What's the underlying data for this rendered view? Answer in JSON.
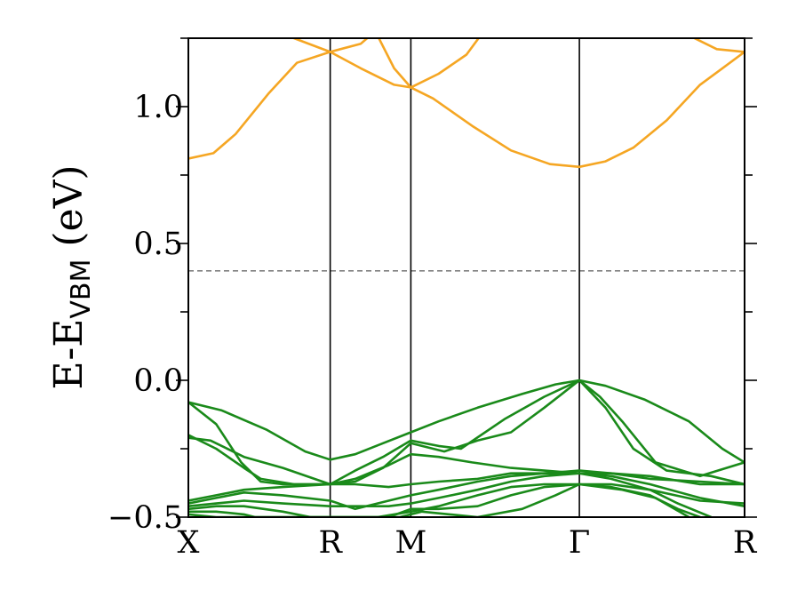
{
  "chart_data": {
    "type": "line",
    "title": "",
    "ylabel": {
      "main": "E-E",
      "sub": "VBM",
      "unit": " (eV)"
    },
    "ylim": [
      -0.5,
      1.25
    ],
    "yticks": [
      -0.5,
      0.0,
      0.5,
      1.0
    ],
    "ytick_labels": [
      "−0.5",
      "0.0",
      "0.5",
      "1.0"
    ],
    "xlim": [
      0,
      1
    ],
    "high_symmetry_points": [
      {
        "label": "X",
        "x": 0.0
      },
      {
        "label": "R",
        "x": 0.255
      },
      {
        "label": "M",
        "x": 0.4
      },
      {
        "label": "Γ",
        "x": 0.703
      },
      {
        "label": "R",
        "x": 1.0
      }
    ],
    "reference_line": {
      "y": 0.4,
      "style": "dashed",
      "color": "#808080"
    },
    "colors": {
      "conduction": "#F5A623",
      "valence": "#1A8A1A",
      "frame": "#000000"
    },
    "series": [
      {
        "band": "conduction",
        "points": [
          [
            0.0,
            0.81
          ],
          [
            0.045,
            0.83
          ],
          [
            0.085,
            0.9
          ],
          [
            0.145,
            1.05
          ],
          [
            0.195,
            1.16
          ],
          [
            0.255,
            1.2
          ],
          [
            0.31,
            1.23
          ],
          [
            0.35,
            1.3
          ]
        ]
      },
      {
        "band": "conduction",
        "points": [
          [
            0.14,
            1.3
          ],
          [
            0.19,
            1.25
          ],
          [
            0.255,
            1.2
          ],
          [
            0.31,
            1.14
          ],
          [
            0.37,
            1.08
          ],
          [
            0.4,
            1.07
          ],
          [
            0.44,
            1.03
          ],
          [
            0.51,
            0.93
          ],
          [
            0.58,
            0.84
          ],
          [
            0.65,
            0.79
          ],
          [
            0.703,
            0.78
          ],
          [
            0.75,
            0.8
          ],
          [
            0.8,
            0.85
          ],
          [
            0.86,
            0.95
          ],
          [
            0.92,
            1.08
          ],
          [
            0.96,
            1.14
          ],
          [
            1.0,
            1.2
          ]
        ]
      },
      {
        "band": "conduction",
        "points": [
          [
            0.33,
            1.3
          ],
          [
            0.37,
            1.14
          ],
          [
            0.4,
            1.07
          ],
          [
            0.45,
            1.12
          ],
          [
            0.5,
            1.19
          ],
          [
            0.54,
            1.3
          ]
        ]
      },
      {
        "band": "conduction",
        "points": [
          [
            0.85,
            1.3
          ],
          [
            0.9,
            1.26
          ],
          [
            0.95,
            1.21
          ],
          [
            1.0,
            1.2
          ]
        ]
      },
      {
        "band": "valence",
        "points": [
          [
            0.0,
            -0.08
          ],
          [
            0.06,
            -0.11
          ],
          [
            0.14,
            -0.18
          ],
          [
            0.21,
            -0.26
          ],
          [
            0.255,
            -0.29
          ],
          [
            0.3,
            -0.27
          ],
          [
            0.35,
            -0.23
          ],
          [
            0.4,
            -0.19
          ],
          [
            0.45,
            -0.15
          ],
          [
            0.52,
            -0.1
          ],
          [
            0.6,
            -0.05
          ],
          [
            0.66,
            -0.015
          ],
          [
            0.703,
            0.0
          ],
          [
            0.75,
            -0.02
          ],
          [
            0.82,
            -0.07
          ],
          [
            0.9,
            -0.15
          ],
          [
            0.96,
            -0.25
          ],
          [
            1.0,
            -0.3
          ]
        ]
      },
      {
        "band": "valence",
        "points": [
          [
            0.0,
            -0.08
          ],
          [
            0.05,
            -0.16
          ],
          [
            0.095,
            -0.3
          ],
          [
            0.13,
            -0.37
          ],
          [
            0.17,
            -0.38
          ],
          [
            0.255,
            -0.38
          ],
          [
            0.3,
            -0.33
          ],
          [
            0.35,
            -0.28
          ],
          [
            0.4,
            -0.22
          ],
          [
            0.45,
            -0.24
          ],
          [
            0.49,
            -0.25
          ],
          [
            0.57,
            -0.14
          ],
          [
            0.64,
            -0.06
          ],
          [
            0.703,
            0.0
          ],
          [
            0.75,
            -0.1
          ],
          [
            0.8,
            -0.25
          ],
          [
            0.86,
            -0.33
          ],
          [
            0.94,
            -0.35
          ],
          [
            1.0,
            -0.38
          ]
        ]
      },
      {
        "band": "valence",
        "points": [
          [
            0.0,
            -0.21
          ],
          [
            0.04,
            -0.22
          ],
          [
            0.1,
            -0.28
          ],
          [
            0.17,
            -0.32
          ],
          [
            0.255,
            -0.38
          ],
          [
            0.3,
            -0.37
          ],
          [
            0.35,
            -0.32
          ],
          [
            0.4,
            -0.23
          ],
          [
            0.46,
            -0.26
          ],
          [
            0.52,
            -0.22
          ],
          [
            0.58,
            -0.19
          ],
          [
            0.64,
            -0.1
          ],
          [
            0.703,
            0.0
          ],
          [
            0.74,
            -0.06
          ],
          [
            0.78,
            -0.15
          ],
          [
            0.84,
            -0.3
          ],
          [
            0.92,
            -0.35
          ],
          [
            1.0,
            -0.3
          ]
        ]
      },
      {
        "band": "valence",
        "points": [
          [
            0.0,
            -0.2
          ],
          [
            0.05,
            -0.25
          ],
          [
            0.1,
            -0.32
          ],
          [
            0.13,
            -0.36
          ],
          [
            0.19,
            -0.38
          ],
          [
            0.255,
            -0.38
          ],
          [
            0.3,
            -0.36
          ],
          [
            0.36,
            -0.31
          ],
          [
            0.4,
            -0.27
          ],
          [
            0.45,
            -0.28
          ],
          [
            0.51,
            -0.3
          ],
          [
            0.58,
            -0.32
          ],
          [
            0.64,
            -0.33
          ],
          [
            0.703,
            -0.34
          ],
          [
            0.76,
            -0.34
          ],
          [
            0.83,
            -0.35
          ],
          [
            0.92,
            -0.38
          ],
          [
            1.0,
            -0.38
          ]
        ]
      },
      {
        "band": "valence",
        "points": [
          [
            0.0,
            -0.44
          ],
          [
            0.05,
            -0.42
          ],
          [
            0.1,
            -0.4
          ],
          [
            0.17,
            -0.39
          ],
          [
            0.255,
            -0.38
          ],
          [
            0.3,
            -0.38
          ],
          [
            0.36,
            -0.39
          ],
          [
            0.4,
            -0.38
          ],
          [
            0.45,
            -0.37
          ],
          [
            0.52,
            -0.36
          ],
          [
            0.58,
            -0.34
          ],
          [
            0.64,
            -0.34
          ],
          [
            0.703,
            -0.33
          ],
          [
            0.76,
            -0.34
          ],
          [
            0.83,
            -0.36
          ],
          [
            0.92,
            -0.37
          ],
          [
            1.0,
            -0.38
          ]
        ]
      },
      {
        "band": "valence",
        "points": [
          [
            0.0,
            -0.45
          ],
          [
            0.05,
            -0.43
          ],
          [
            0.1,
            -0.41
          ],
          [
            0.17,
            -0.42
          ],
          [
            0.255,
            -0.44
          ],
          [
            0.3,
            -0.47
          ],
          [
            0.36,
            -0.44
          ],
          [
            0.4,
            -0.42
          ],
          [
            0.45,
            -0.4
          ],
          [
            0.52,
            -0.37
          ],
          [
            0.58,
            -0.35
          ],
          [
            0.64,
            -0.34
          ],
          [
            0.703,
            -0.34
          ],
          [
            0.76,
            -0.35
          ],
          [
            0.83,
            -0.38
          ],
          [
            0.92,
            -0.43
          ],
          [
            1.0,
            -0.46
          ]
        ]
      },
      {
        "band": "valence",
        "points": [
          [
            0.0,
            -0.46
          ],
          [
            0.05,
            -0.45
          ],
          [
            0.1,
            -0.44
          ],
          [
            0.17,
            -0.45
          ],
          [
            0.255,
            -0.46
          ],
          [
            0.3,
            -0.46
          ],
          [
            0.36,
            -0.46
          ],
          [
            0.4,
            -0.45
          ],
          [
            0.45,
            -0.43
          ],
          [
            0.52,
            -0.4
          ],
          [
            0.58,
            -0.37
          ],
          [
            0.64,
            -0.35
          ],
          [
            0.703,
            -0.34
          ],
          [
            0.76,
            -0.36
          ],
          [
            0.83,
            -0.4
          ],
          [
            0.92,
            -0.44
          ],
          [
            1.0,
            -0.45
          ]
        ]
      },
      {
        "band": "valence",
        "points": [
          [
            0.0,
            -0.47
          ],
          [
            0.05,
            -0.46
          ],
          [
            0.1,
            -0.46
          ],
          [
            0.17,
            -0.48
          ],
          [
            0.22,
            -0.5
          ],
          [
            0.34,
            -0.5
          ],
          [
            0.4,
            -0.48
          ],
          [
            0.45,
            -0.46
          ],
          [
            0.52,
            -0.42
          ],
          [
            0.58,
            -0.39
          ],
          [
            0.64,
            -0.38
          ],
          [
            0.703,
            -0.38
          ],
          [
            0.76,
            -0.39
          ],
          [
            0.83,
            -0.42
          ],
          [
            0.88,
            -0.47
          ],
          [
            0.92,
            -0.5
          ]
        ]
      },
      {
        "band": "valence",
        "points": [
          [
            0.0,
            -0.48
          ],
          [
            0.05,
            -0.48
          ],
          [
            0.1,
            -0.49
          ],
          [
            0.12,
            -0.5
          ],
          [
            0.36,
            -0.5
          ],
          [
            0.4,
            -0.47
          ],
          [
            0.45,
            -0.47
          ],
          [
            0.52,
            -0.46
          ],
          [
            0.58,
            -0.42
          ],
          [
            0.64,
            -0.39
          ],
          [
            0.703,
            -0.38
          ],
          [
            0.76,
            -0.38
          ],
          [
            0.83,
            -0.4
          ],
          [
            0.88,
            -0.45
          ],
          [
            0.94,
            -0.5
          ]
        ]
      },
      {
        "band": "valence",
        "points": [
          [
            0.0,
            -0.49
          ],
          [
            0.05,
            -0.5
          ],
          [
            0.38,
            -0.5
          ],
          [
            0.42,
            -0.48
          ],
          [
            0.47,
            -0.49
          ],
          [
            0.52,
            -0.5
          ],
          [
            0.6,
            -0.47
          ],
          [
            0.66,
            -0.42
          ],
          [
            0.703,
            -0.38
          ],
          [
            0.78,
            -0.4
          ],
          [
            0.84,
            -0.43
          ],
          [
            0.9,
            -0.5
          ]
        ]
      }
    ]
  }
}
